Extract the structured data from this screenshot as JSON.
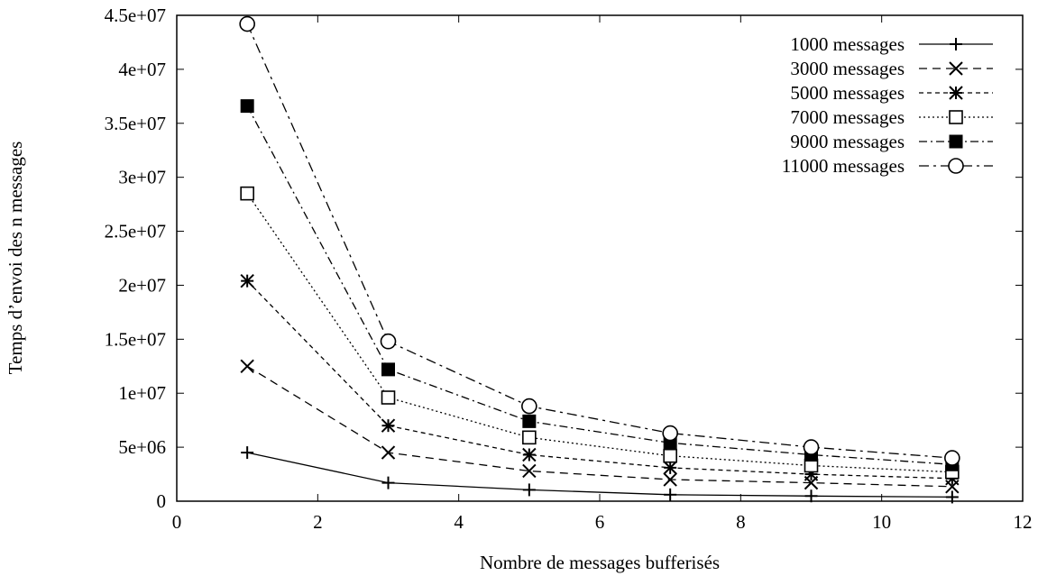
{
  "chart_data": {
    "type": "line",
    "xlabel": "Nombre de messages bufferisés",
    "ylabel": "Temps d’envoi des n messages",
    "xlim": [
      0,
      12
    ],
    "ylim": [
      0,
      45000000
    ],
    "xticks": [
      0,
      2,
      4,
      6,
      8,
      10,
      12
    ],
    "yticks": [
      0,
      5000000,
      10000000,
      15000000,
      20000000,
      25000000,
      30000000,
      35000000,
      40000000,
      45000000
    ],
    "xtick_labels": [
      "0",
      "2",
      "4",
      "6",
      "8",
      "10",
      "12"
    ],
    "ytick_labels": [
      "0",
      "5e+06",
      "1e+07",
      "1.5e+07",
      "2e+07",
      "2.5e+07",
      "3e+07",
      "3.5e+07",
      "4e+07",
      "4.5e+07"
    ],
    "grid": false,
    "legend_position": "top-right",
    "x": [
      1,
      3,
      5,
      7,
      9,
      11
    ],
    "series": [
      {
        "name": "1000 messages",
        "marker": "plus",
        "dash": "solid",
        "values": [
          4500000,
          1700000,
          1050000,
          600000,
          480000,
          380000
        ]
      },
      {
        "name": "3000 messages",
        "marker": "cross",
        "dash": "dashed",
        "values": [
          12500000,
          4500000,
          2800000,
          2000000,
          1700000,
          1350000
        ]
      },
      {
        "name": "5000 messages",
        "marker": "star",
        "dash": "short-dashed",
        "values": [
          20400000,
          7000000,
          4300000,
          3100000,
          2500000,
          2100000
        ]
      },
      {
        "name": "7000 messages",
        "marker": "open-square",
        "dash": "dotted",
        "values": [
          28500000,
          9600000,
          5900000,
          4200000,
          3300000,
          2700000
        ]
      },
      {
        "name": "9000 messages",
        "marker": "filled-square",
        "dash": "dash-dot",
        "values": [
          36600000,
          12200000,
          7400000,
          5400000,
          4300000,
          3400000
        ]
      },
      {
        "name": "11000 messages",
        "marker": "open-circle",
        "dash": "dash-dot-long",
        "values": [
          44200000,
          14800000,
          8800000,
          6300000,
          5000000,
          4000000
        ]
      }
    ]
  }
}
